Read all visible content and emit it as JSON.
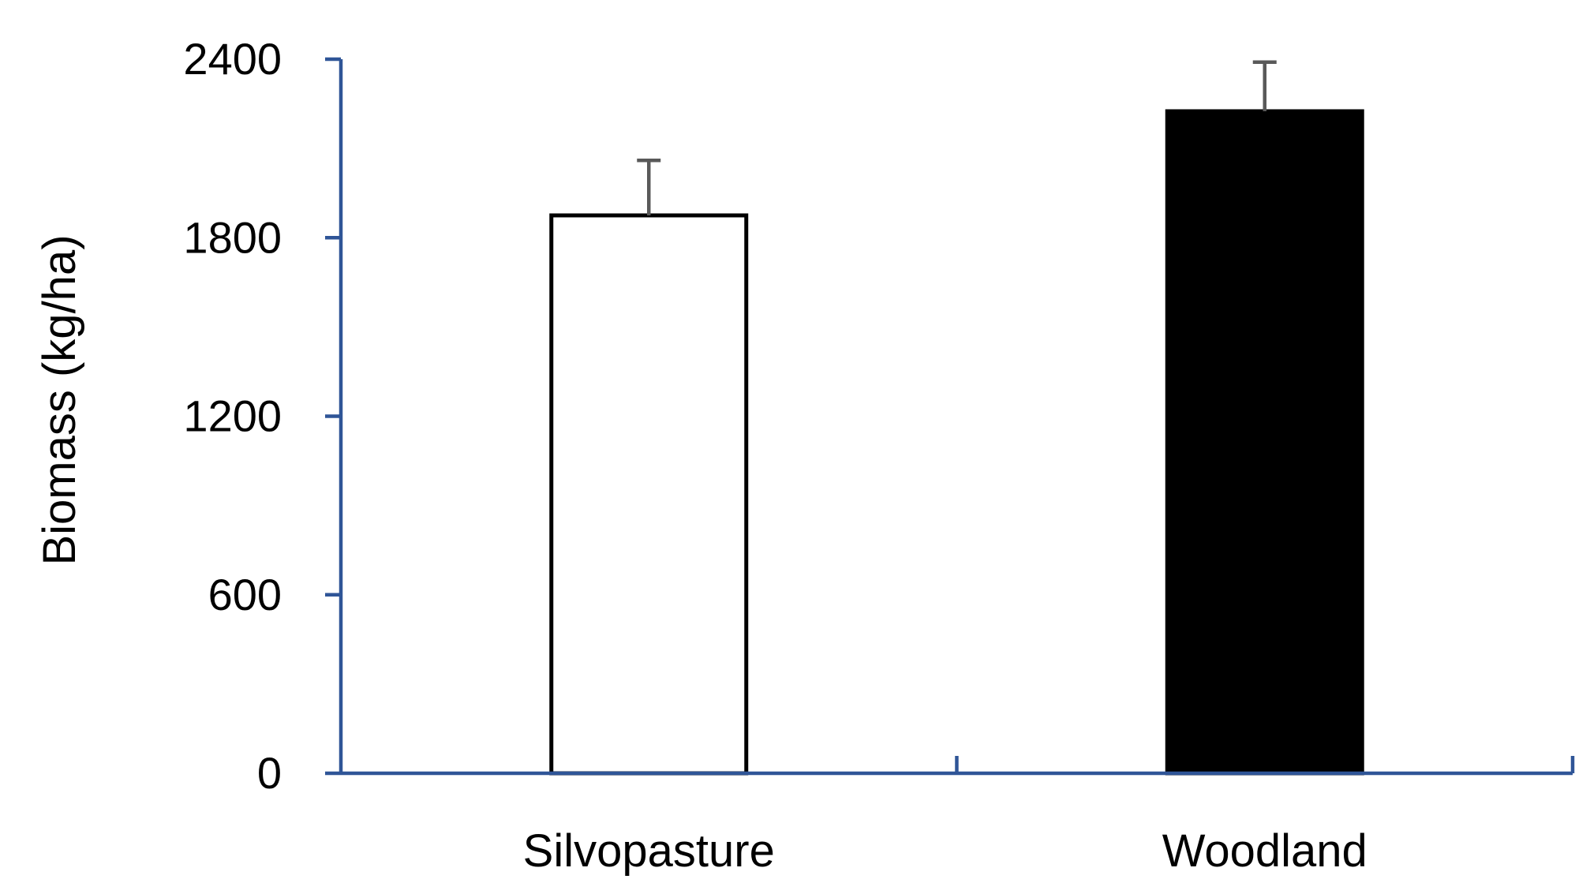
{
  "chart_data": {
    "type": "bar",
    "title": "",
    "xlabel": "",
    "ylabel": "Biomass (kg/ha)",
    "categories": [
      "Silvopasture",
      "Woodland"
    ],
    "values": [
      1875,
      2225
    ],
    "error_plus": [
      185,
      165
    ],
    "ylim": [
      0,
      2400
    ],
    "yticks": [
      "0",
      "600",
      "1200",
      "1800",
      "2400"
    ],
    "ytick_values": [
      0,
      600,
      1200,
      1800,
      2400
    ],
    "bar_fills": [
      "#ffffff",
      "#000000"
    ],
    "bar_edge_color": "#000000",
    "error_bar_color": "#595959",
    "axis_color": "#2f5597",
    "grid": false,
    "legend": "none"
  }
}
